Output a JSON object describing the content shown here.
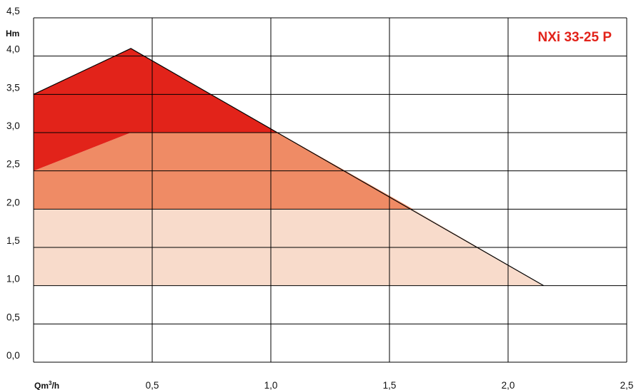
{
  "chart_data": {
    "type": "area",
    "title": "NXi 33-25 P",
    "ylabel": "Hm",
    "xlabel": "Qm³/h",
    "xlabel_base": "Qm",
    "xlabel_sup": "3",
    "xlabel_tail": "/h",
    "xlim": [
      0,
      2.5
    ],
    "ylim": [
      0,
      4.5
    ],
    "grid": true,
    "x_ticks": [
      0.5,
      1.0,
      1.5,
      2.0,
      2.5
    ],
    "x_tick_labels": [
      "0,5",
      "1,0",
      "1,5",
      "2,0",
      "2,5"
    ],
    "y_ticks": [
      0,
      0.5,
      1.0,
      1.5,
      2.0,
      2.5,
      3.0,
      3.5,
      4.0,
      4.5
    ],
    "y_tick_labels": [
      "0,0",
      "0,5",
      "1,0",
      "1,5",
      "2,0",
      "2,5",
      "3,0",
      "3,5",
      "4,0",
      "4,5"
    ],
    "curve": [
      [
        0,
        3.5
      ],
      [
        0.41,
        4.1
      ],
      [
        2.15,
        1.0
      ]
    ],
    "regions": [
      {
        "color": "#F8DBCB",
        "polygon": [
          [
            0,
            1.0
          ],
          [
            0,
            2.0
          ],
          [
            1.6,
            2.0
          ],
          [
            2.15,
            1.0
          ]
        ]
      },
      {
        "color": "#EF8B65",
        "polygon": [
          [
            0,
            2.0
          ],
          [
            0,
            2.5
          ],
          [
            0.41,
            3.0
          ],
          [
            1.03,
            3.0
          ],
          [
            1.6,
            2.0
          ]
        ]
      },
      {
        "color": "#E2231A",
        "polygon": [
          [
            0,
            2.5
          ],
          [
            0,
            3.5
          ],
          [
            0.41,
            4.1
          ],
          [
            1.03,
            3.0
          ],
          [
            0.41,
            3.0
          ]
        ]
      }
    ],
    "colors": {
      "title": "#E2231A",
      "grid": "#000000",
      "curve": "#000000"
    }
  }
}
